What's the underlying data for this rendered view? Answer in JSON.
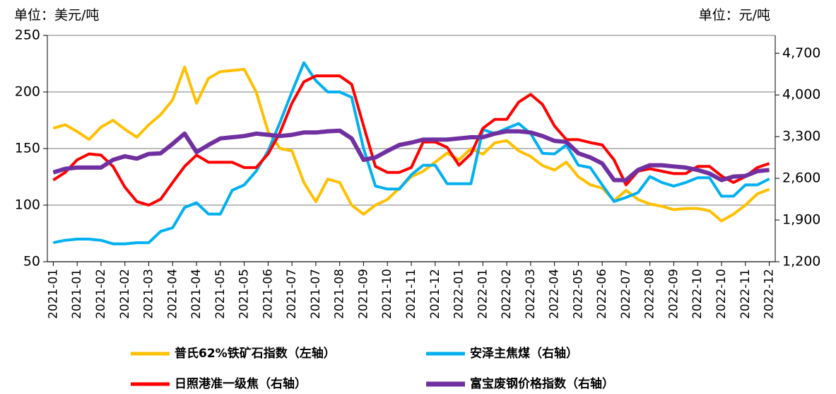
{
  "chart_data": {
    "type": "line",
    "y_label": "单位：美元/吨",
    "y2_label": "单位：元/吨",
    "categories": [
      "2021-01",
      null,
      "2021-01",
      null,
      "2021-02",
      null,
      "2021-02",
      null,
      "2021-03",
      null,
      "2021-04",
      null,
      "2021-04",
      null,
      "2021-05",
      null,
      "2021-05",
      null,
      "2021-06",
      null,
      "2021-07",
      null,
      "2021-07",
      null,
      "2021-08",
      null,
      "2021-09",
      null,
      "2021-10",
      null,
      "2021-11",
      null,
      "2021-12",
      null,
      "2022-01",
      null,
      "2022-01",
      null,
      "2022-02",
      null,
      "2022-03",
      null,
      "2022-04",
      null,
      "2022-05",
      null,
      "2022-06",
      null,
      "2022-07",
      null,
      "2022-08",
      null,
      "2022-09",
      null,
      "2022-10",
      null,
      "2022-10",
      null,
      "2022-11",
      null,
      "2022-12"
    ],
    "series": [
      {
        "name": "普氏62%铁矿石指数（左轴）",
        "color": "#ffc000",
        "axis": "y",
        "values": [
          168,
          171,
          165,
          158,
          169,
          175,
          167,
          160,
          171,
          180,
          193,
          222,
          190,
          212,
          218,
          219,
          220,
          200,
          165,
          150,
          148,
          120,
          103,
          123,
          120,
          100,
          92,
          100,
          105,
          115,
          125,
          130,
          138,
          146,
          140,
          150,
          145,
          155,
          157,
          148,
          143,
          135,
          131,
          138,
          125,
          118,
          115,
          104,
          113,
          105,
          101,
          99,
          96,
          97,
          97,
          95,
          86,
          92,
          100,
          110,
          114
        ]
      },
      {
        "name": "安泽主焦煤（右轴）",
        "color": "#00b0f0",
        "axis": "y2",
        "values": [
          1520,
          1560,
          1580,
          1580,
          1560,
          1500,
          1500,
          1520,
          1520,
          1710,
          1770,
          2110,
          2190,
          2000,
          2000,
          2400,
          2490,
          2720,
          3060,
          3540,
          4050,
          4540,
          4240,
          4050,
          4050,
          3960,
          3100,
          2470,
          2420,
          2420,
          2660,
          2820,
          2820,
          2510,
          2510,
          2510,
          3420,
          3350,
          3440,
          3520,
          3350,
          3020,
          3010,
          3160,
          2820,
          2780,
          2490,
          2210,
          2280,
          2360,
          2630,
          2530,
          2470,
          2530,
          2610,
          2610,
          2300,
          2300,
          2490,
          2490,
          2590
        ]
      },
      {
        "name": "日照港准一级焦（右轴）",
        "color": "#ff0000",
        "axis": "y2",
        "values": [
          2570,
          2700,
          2910,
          3010,
          2990,
          2800,
          2450,
          2210,
          2150,
          2250,
          2530,
          2800,
          2990,
          2870,
          2870,
          2870,
          2780,
          2780,
          3010,
          3370,
          3860,
          4220,
          4320,
          4320,
          4320,
          4180,
          3480,
          2800,
          2700,
          2700,
          2780,
          3210,
          3210,
          3120,
          2820,
          3010,
          3440,
          3590,
          3590,
          3880,
          4010,
          3840,
          3480,
          3250,
          3250,
          3200,
          3160,
          2910,
          2490,
          2720,
          2760,
          2720,
          2680,
          2680,
          2800,
          2800,
          2640,
          2530,
          2630,
          2780,
          2850
        ]
      },
      {
        "name": "富宝废钢价格指数（右轴）",
        "color": "#7030a0",
        "axis": "y2",
        "values": [
          2700,
          2760,
          2780,
          2780,
          2780,
          2910,
          2970,
          2930,
          3010,
          3020,
          3180,
          3350,
          3040,
          3160,
          3270,
          3290,
          3310,
          3350,
          3330,
          3310,
          3330,
          3370,
          3370,
          3390,
          3400,
          3270,
          2910,
          2950,
          3060,
          3160,
          3200,
          3250,
          3250,
          3250,
          3270,
          3290,
          3290,
          3350,
          3390,
          3390,
          3370,
          3310,
          3230,
          3210,
          3020,
          2950,
          2850,
          2570,
          2570,
          2740,
          2820,
          2820,
          2800,
          2780,
          2740,
          2680,
          2570,
          2630,
          2640,
          2720,
          2740
        ]
      }
    ],
    "ylim": [
      50,
      250
    ],
    "yticks": [
      50,
      100,
      150,
      200,
      250
    ],
    "y2lim": [
      1200,
      5000
    ],
    "y2ticks": [
      {
        "value": 1200,
        "label": "1,200"
      },
      {
        "value": 1900,
        "label": "1,900"
      },
      {
        "value": 2600,
        "label": "2,600"
      },
      {
        "value": 3300,
        "label": "3,300"
      },
      {
        "value": 4000,
        "label": "4,000"
      },
      {
        "value": 4700,
        "label": "4,700"
      }
    ],
    "grid": true
  }
}
